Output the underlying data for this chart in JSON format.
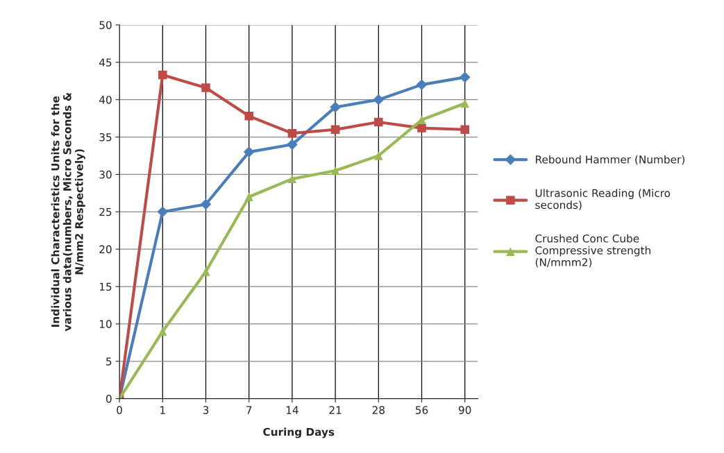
{
  "chart_data": {
    "type": "line",
    "xlabel": "Curing Days",
    "ylabel": "Individual Characteristics Units for the various data(numbers, Micro Seconds & N/mm2 Respectively)",
    "categories": [
      "0",
      "1",
      "3",
      "7",
      "14",
      "21",
      "28",
      "56",
      "90"
    ],
    "series": [
      {
        "name": "Rebound Hammer (Number)",
        "color": "#4a7ebb",
        "marker": "diamond",
        "values": [
          0,
          25,
          26,
          33,
          34,
          39,
          40,
          42,
          43
        ]
      },
      {
        "name": "Ultrasonic Reading (Micro seconds)",
        "color": "#be4b48",
        "marker": "square",
        "values": [
          0,
          43.3,
          41.6,
          37.8,
          35.5,
          36,
          37,
          36.2,
          36
        ]
      },
      {
        "name": "Crushed Conc Cube Compressive strength (N/mmm2)",
        "color": "#98b954",
        "marker": "triangle",
        "values": [
          0,
          9,
          17,
          27,
          29.4,
          30.5,
          32.5,
          37.3,
          39.5
        ]
      }
    ],
    "ylim": [
      0,
      50
    ],
    "yticks": [
      0,
      5,
      10,
      15,
      20,
      25,
      30,
      35,
      40,
      45,
      50
    ],
    "grid": true,
    "legend": "right"
  }
}
